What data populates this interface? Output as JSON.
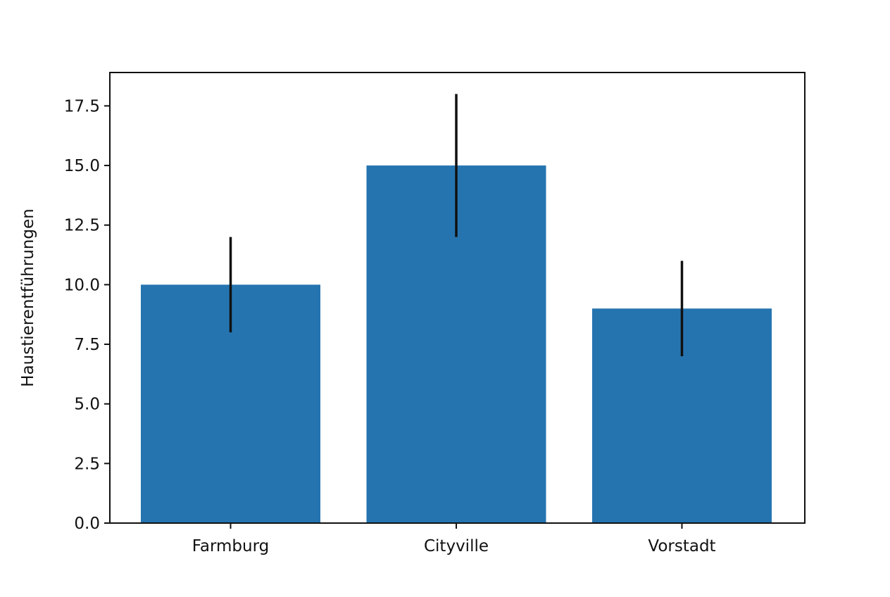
{
  "chart_data": {
    "type": "bar",
    "title": "",
    "xlabel": "",
    "ylabel": "Haustierentführungen",
    "categories": [
      "Farmburg",
      "Cityville",
      "Vorstadt"
    ],
    "values": [
      10,
      15,
      9
    ],
    "error": [
      2,
      3,
      2
    ],
    "ylim": [
      0,
      18.9
    ],
    "yticks": [
      0,
      2.5,
      5,
      7.5,
      10,
      12.5,
      15,
      17.5
    ],
    "ytick_labels": [
      "0.0",
      "2.5",
      "5.0",
      "7.5",
      "10.0",
      "12.5",
      "15.0",
      "17.5"
    ],
    "grid": false,
    "legend": "none",
    "colors": {
      "bar": "#2574b0",
      "error_bar": "#111111",
      "axes": "#111111"
    }
  }
}
